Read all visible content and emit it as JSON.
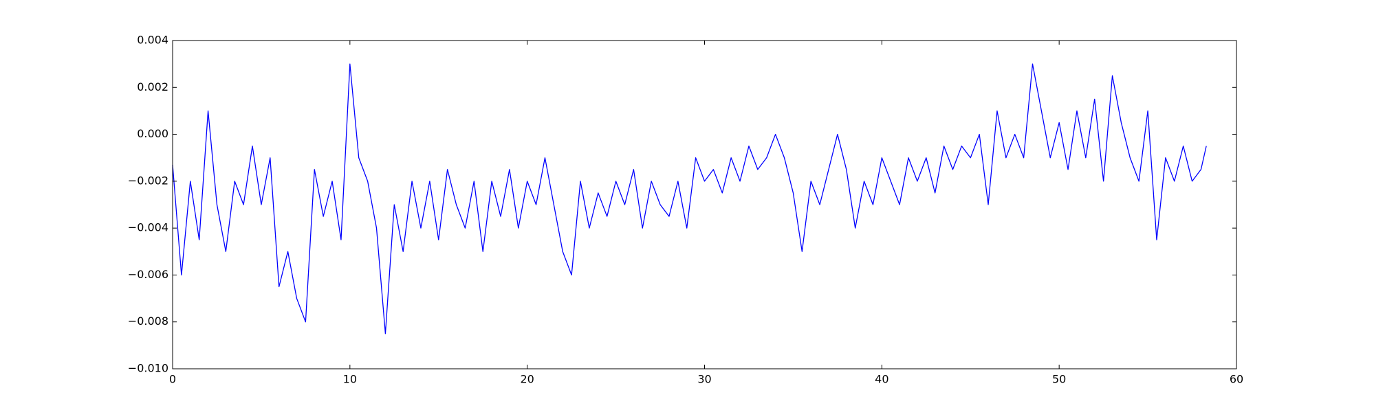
{
  "chart_data": {
    "type": "line",
    "color": "#0000ff",
    "x": [
      0,
      0.5,
      1,
      1.5,
      2,
      2.5,
      3,
      3.5,
      4,
      4.5,
      5,
      5.5,
      6,
      6.5,
      7,
      7.5,
      8,
      8.5,
      9,
      9.5,
      10,
      10.5,
      11,
      11.5,
      12,
      12.5,
      13,
      13.5,
      14,
      14.5,
      15,
      15.5,
      16,
      16.5,
      17,
      17.5,
      18,
      18.5,
      19,
      19.5,
      20,
      20.5,
      21,
      21.5,
      22,
      22.5,
      23,
      23.5,
      24,
      24.5,
      25,
      25.5,
      26,
      26.5,
      27,
      27.5,
      28,
      28.5,
      29,
      29.5,
      30,
      30.5,
      31,
      31.5,
      32,
      32.5,
      33,
      33.5,
      34,
      34.5,
      35,
      35.5,
      36,
      36.5,
      37,
      37.5,
      38,
      38.5,
      39,
      39.5,
      40,
      40.5,
      41,
      41.5,
      42,
      42.5,
      43,
      43.5,
      44,
      44.5,
      45,
      45.5,
      46,
      46.5,
      47,
      47.5,
      48,
      48.5,
      49,
      49.5,
      50,
      50.5,
      51,
      51.5,
      52,
      52.5,
      53,
      53.5,
      54,
      54.5,
      55,
      55.5,
      56,
      56.5,
      57,
      57.5,
      58,
      58.3
    ],
    "values": [
      -0.0013,
      -0.006,
      -0.002,
      -0.0045,
      0.001,
      -0.003,
      -0.005,
      -0.002,
      -0.003,
      -0.0005,
      -0.003,
      -0.001,
      -0.0065,
      -0.005,
      -0.007,
      -0.008,
      -0.0015,
      -0.0035,
      -0.002,
      -0.0045,
      0.003,
      -0.001,
      -0.002,
      -0.004,
      -0.0085,
      -0.003,
      -0.005,
      -0.002,
      -0.004,
      -0.002,
      -0.0045,
      -0.0015,
      -0.003,
      -0.004,
      -0.002,
      -0.005,
      -0.002,
      -0.0035,
      -0.0015,
      -0.004,
      -0.002,
      -0.003,
      -0.001,
      -0.003,
      -0.005,
      -0.006,
      -0.002,
      -0.004,
      -0.0025,
      -0.0035,
      -0.002,
      -0.003,
      -0.0015,
      -0.004,
      -0.002,
      -0.003,
      -0.0035,
      -0.002,
      -0.004,
      -0.001,
      -0.002,
      -0.0015,
      -0.0025,
      -0.001,
      -0.002,
      -0.0005,
      -0.0015,
      -0.001,
      0,
      -0.001,
      -0.0025,
      -0.005,
      -0.002,
      -0.003,
      -0.0015,
      0,
      -0.0015,
      -0.004,
      -0.002,
      -0.003,
      -0.001,
      -0.002,
      -0.003,
      -0.001,
      -0.002,
      -0.001,
      -0.0025,
      -0.0005,
      -0.0015,
      -0.0005,
      -0.001,
      0,
      -0.003,
      0.001,
      -0.001,
      0,
      -0.001,
      0.003,
      0.001,
      -0.001,
      0.0005,
      -0.0015,
      0.001,
      -0.001,
      0.0015,
      -0.002,
      0.0025,
      0.0005,
      -0.001,
      -0.002,
      0.001,
      -0.0045,
      -0.001,
      -0.002,
      -0.0005,
      -0.002,
      -0.0015,
      -0.0005
    ],
    "xlim": [
      0,
      60
    ],
    "xticks": [
      0,
      10,
      20,
      30,
      40,
      50,
      60
    ],
    "ylim": [
      -0.01,
      0.004
    ],
    "yticks": [
      {
        "value": -0.01,
        "label": "−0.010"
      },
      {
        "value": -0.008,
        "label": "−0.008"
      },
      {
        "value": -0.006,
        "label": "−0.006"
      },
      {
        "value": -0.004,
        "label": "−0.004"
      },
      {
        "value": -0.002,
        "label": "−0.002"
      },
      {
        "value": 0,
        "label": "0.000"
      },
      0.002,
      0.004
    ]
  }
}
